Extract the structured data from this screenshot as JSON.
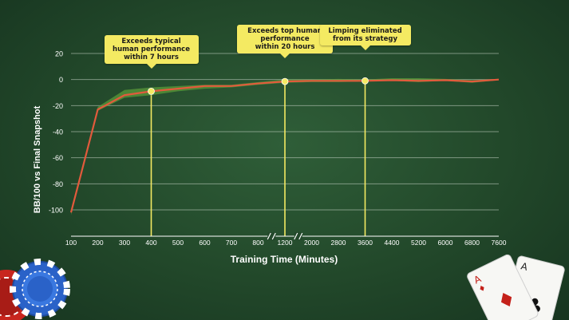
{
  "chart_data": {
    "type": "line",
    "xlabel": "Training Time (Minutes)",
    "ylabel": "BB/100 vs Final Snapshot",
    "ylim": [
      -120,
      20
    ],
    "yticks": [
      20,
      0,
      -20,
      -40,
      -60,
      -80,
      -100
    ],
    "x_ticks": [
      "100",
      "200",
      "300",
      "400",
      "500",
      "600",
      "700",
      "800",
      "1200",
      "2000",
      "2800",
      "3600",
      "4400",
      "5200",
      "6000",
      "6800",
      "7600"
    ],
    "x_axis_breaks": [
      "800–1200",
      "1200–2000"
    ],
    "grid": true,
    "series": [
      {
        "x": [
          100,
          200,
          300,
          400,
          500,
          600,
          700,
          800,
          1200,
          2000,
          2800,
          3600,
          4400,
          5200,
          6000,
          6800,
          7600
        ],
        "values": [
          -102,
          -23,
          -12,
          -9,
          -7,
          -5,
          -5,
          -3,
          -1.5,
          -1,
          -1,
          -1,
          -0.5,
          -1,
          -0.5,
          -1.5,
          0
        ],
        "band_low": [
          -104,
          -24,
          -14,
          -12,
          -9,
          -7,
          -6,
          -4,
          -2.5,
          -2,
          -2,
          -1.5,
          -1,
          -2,
          -1,
          -2.5,
          -0.5
        ],
        "band_high": [
          -100,
          -21,
          -8,
          -6,
          -5,
          -4,
          -4,
          -2,
          0,
          0,
          0.5,
          0,
          1,
          1,
          0.5,
          -0.5,
          0.5
        ],
        "color": "#e25a3c",
        "band_color": "#5a9a3a"
      }
    ],
    "annotations": [
      {
        "text": "Exceeds typical\nhuman performance\nwithin 7 hours",
        "x": 400,
        "y": -9
      },
      {
        "text": "Exceeds top human\nperformance\nwithin 20 hours",
        "x": 1200,
        "y": -1.5
      },
      {
        "text": "Limping eliminated\nfrom its strategy",
        "x": 3600,
        "y": -1
      }
    ]
  },
  "colors": {
    "background": "#22482a",
    "line": "#e25a3c",
    "callout": "#f4ea62",
    "grid": "#c8d6c8"
  },
  "decor": {
    "bottom_left": "poker-chips-icon",
    "bottom_right": "playing-cards-icon"
  }
}
